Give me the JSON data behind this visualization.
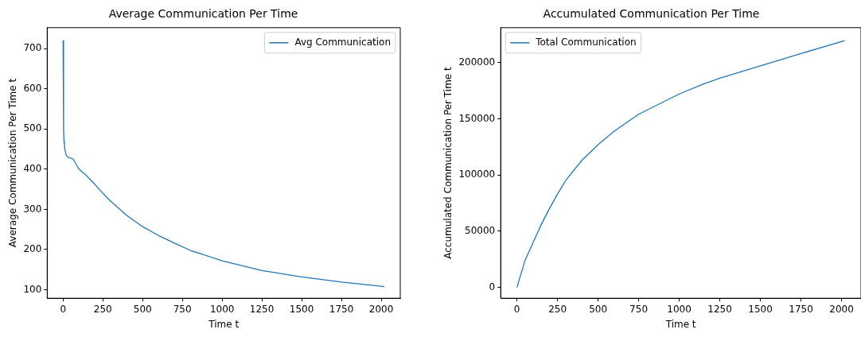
{
  "chart_data": [
    {
      "type": "line",
      "title": "Average Communication Per Time",
      "xlabel": "Time t",
      "ylabel": "Average Communication Per Time t",
      "xlim": [
        -100,
        2120
      ],
      "xticks": [
        0,
        250,
        500,
        750,
        1000,
        1250,
        1500,
        1750,
        2000
      ],
      "ylim": [
        79,
        752
      ],
      "yticks": [
        100,
        200,
        300,
        400,
        500,
        600,
        700
      ],
      "grid": false,
      "legend": "top right",
      "marker": "none",
      "series": [
        {
          "name": "Avg Communication",
          "color": "#1f77b4",
          "x": [
            0,
            3,
            6,
            8,
            10,
            15,
            20,
            30,
            40,
            50,
            60,
            70,
            80,
            100,
            150,
            200,
            250,
            300,
            400,
            500,
            600,
            700,
            800,
            1000,
            1250,
            1500,
            1750,
            2000,
            2020
          ],
          "values": [
            720,
            500,
            465,
            470,
            452,
            442,
            435,
            430,
            428,
            427,
            426,
            421,
            413,
            400,
            383,
            362,
            340,
            320,
            285,
            257,
            235,
            216,
            198,
            172,
            148,
            132,
            119,
            109,
            108
          ]
        }
      ]
    },
    {
      "type": "line",
      "title": "Accumulated Communication Per Time",
      "xlabel": "Time t",
      "ylabel": "Accumulated Communication Per Time t",
      "xlim": [
        -100,
        2120
      ],
      "xticks": [
        0,
        250,
        500,
        750,
        1000,
        1250,
        1500,
        1750,
        2000
      ],
      "ylim": [
        -9600,
        231000
      ],
      "yticks": [
        0,
        50000,
        100000,
        150000,
        200000
      ],
      "grid": false,
      "legend": "top left",
      "marker": "none",
      "series": [
        {
          "name": "Total Communication",
          "color": "#1f77b4",
          "x": [
            0,
            50,
            100,
            150,
            200,
            250,
            300,
            400,
            500,
            600,
            750,
            1000,
            1150,
            1250,
            1500,
            1750,
            2020
          ],
          "values": [
            0,
            24000,
            40000,
            56000,
            70000,
            83000,
            95000,
            113000,
            127000,
            139000,
            154000,
            172000,
            181000,
            186000,
            197000,
            208000,
            219500
          ]
        }
      ]
    }
  ]
}
